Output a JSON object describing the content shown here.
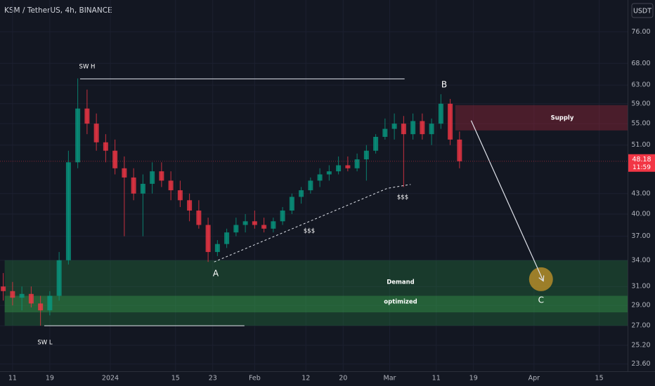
{
  "chart_data": {
    "type": "candlestick",
    "title": "KSM / TetherUS, 4h, BINANCE",
    "currency": "USDT",
    "log_scale": true,
    "grid": true,
    "up_color": "#089981",
    "down_color": "#f23645",
    "xlim": [
      -2.7,
      132.1
    ],
    "xticks": [
      {
        "value": 0,
        "label": "11"
      },
      {
        "value": 8,
        "label": "19"
      },
      {
        "value": 21,
        "label": "2024"
      },
      {
        "value": 35,
        "label": "15"
      },
      {
        "value": 43,
        "label": "23"
      },
      {
        "value": 52,
        "label": "Feb"
      },
      {
        "value": 63,
        "label": "12"
      },
      {
        "value": 71,
        "label": "20"
      },
      {
        "value": 81,
        "label": "Mar"
      },
      {
        "value": 91,
        "label": "11"
      },
      {
        "value": 99,
        "label": "19"
      },
      {
        "value": 112,
        "label": "Apr"
      },
      {
        "value": 126,
        "label": "15"
      }
    ],
    "ylim": [
      23,
      85
    ],
    "yticks": [
      {
        "value": 76,
        "label": "76.00"
      },
      {
        "value": 68,
        "label": "68.00"
      },
      {
        "value": 63,
        "label": "63.00"
      },
      {
        "value": 59,
        "label": "59.00"
      },
      {
        "value": 55,
        "label": "55.00"
      },
      {
        "value": 51,
        "label": "51.00"
      },
      {
        "value": 43,
        "label": "43.00"
      },
      {
        "value": 40,
        "label": "40.00"
      },
      {
        "value": 37,
        "label": "37.00"
      },
      {
        "value": 34,
        "label": "34.00"
      },
      {
        "value": 31,
        "label": "31.00"
      },
      {
        "value": 29,
        "label": "29.00"
      },
      {
        "value": 27,
        "label": "27.00"
      },
      {
        "value": 25.2,
        "label": "25.20"
      },
      {
        "value": 23.6,
        "label": "23.60"
      }
    ],
    "candles": {
      "x": [
        -2,
        0,
        2,
        4,
        6,
        8,
        10,
        12,
        14,
        16,
        18,
        20,
        22,
        24,
        26,
        28,
        30,
        32,
        34,
        36,
        38,
        40,
        42,
        44,
        46,
        48,
        50,
        52,
        54,
        56,
        58,
        60,
        62,
        64,
        66,
        68,
        70,
        72,
        74,
        76,
        78,
        80,
        82,
        84,
        86,
        88,
        90,
        92,
        94,
        96
      ],
      "open": [
        31,
        30.5,
        29.8,
        30.2,
        29.2,
        28.5,
        30,
        34,
        48,
        58,
        55,
        51.5,
        50,
        47,
        45.5,
        43,
        44.5,
        46.5,
        45,
        43.5,
        42,
        40.5,
        38.5,
        35,
        36,
        37.5,
        38.5,
        39,
        38.5,
        38,
        39,
        40.5,
        42.5,
        43.5,
        45,
        46,
        46.5,
        47.5,
        47,
        48.5,
        50,
        52.5,
        54,
        55,
        53,
        55.5,
        53,
        55,
        59,
        52
      ],
      "high": [
        32.5,
        31.5,
        31,
        31,
        30,
        30.5,
        35,
        50,
        64.5,
        62,
        57,
        53,
        52,
        49,
        47,
        46,
        48,
        48,
        46.5,
        45,
        43,
        42,
        39.5,
        36.5,
        38,
        39.5,
        40,
        40.5,
        39.5,
        39.5,
        41,
        43,
        44,
        45.5,
        47,
        47.5,
        49,
        49,
        49.5,
        51,
        53,
        56,
        57,
        56.5,
        57,
        57,
        56,
        61,
        60,
        53.5
      ],
      "low": [
        29.5,
        29,
        28.5,
        28.8,
        27,
        28,
        29.5,
        33.5,
        47,
        53,
        50,
        48,
        46,
        37,
        42,
        37,
        43,
        44,
        42,
        41,
        39,
        38,
        33.8,
        34.5,
        35.5,
        37,
        37.5,
        38,
        37.5,
        37.5,
        38.5,
        40,
        41.5,
        43,
        44,
        45,
        46,
        46.5,
        46.5,
        45,
        49.5,
        52,
        52,
        44,
        52,
        52,
        51,
        54,
        51,
        47
      ],
      "close": [
        30.5,
        29.8,
        30.2,
        29.2,
        28.5,
        30,
        34,
        48,
        58,
        55,
        51.5,
        50,
        47,
        45.5,
        43,
        44.5,
        46.5,
        45,
        43.5,
        42,
        40.5,
        38.5,
        35,
        36,
        37.5,
        38.5,
        39,
        38.5,
        38,
        39,
        40.5,
        42.5,
        43.5,
        45,
        46,
        46.5,
        47.5,
        47,
        48.5,
        50,
        52.5,
        54,
        55,
        53,
        55.5,
        53,
        55,
        59,
        52,
        48.18
      ]
    },
    "last_price": {
      "value": 48.18,
      "label": "48.18"
    },
    "countdown": "11:59",
    "zones": [
      {
        "name": "Supply",
        "low": 53.7,
        "high": 58.7,
        "start": 95.1,
        "color": "rgba(178,40,60,0.35)"
      },
      {
        "name": "Demand",
        "low": 27,
        "high": 34,
        "start": -1.7,
        "color": "rgba(40,140,70,0.3)"
      },
      {
        "name": "optimized",
        "low": 28.3,
        "high": 30,
        "start": -1.7,
        "color": "rgba(60,170,80,0.35)"
      }
    ],
    "lines": [
      {
        "name": "SW H",
        "dashed": false,
        "x": [
          14.5,
          84.2
        ],
        "y": [
          64.4,
          64.4
        ]
      },
      {
        "name": "SW L",
        "dashed": false,
        "x": [
          6.8,
          49.8
        ],
        "y": [
          27,
          27
        ]
      },
      {
        "name": "$$$",
        "dashed": true,
        "x": [
          43.3,
          80.5,
          85.5
        ],
        "y": [
          33.8,
          43.8,
          44.4
        ]
      }
    ],
    "arrow": {
      "x": [
        98.5,
        114
      ],
      "y": [
        55.6,
        31.6
      ]
    },
    "target": {
      "name": "C",
      "x": 113.5,
      "y": 31.8
    },
    "points": [
      {
        "name": "A"
      },
      {
        "name": "B"
      },
      {
        "name": "$$$"
      }
    ]
  }
}
